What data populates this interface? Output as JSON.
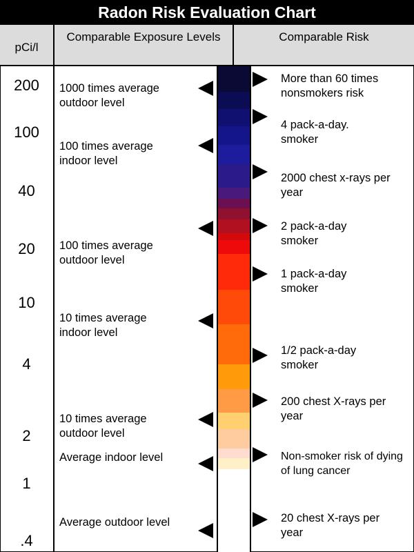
{
  "title": "Radon Risk Evaluation Chart",
  "headers": {
    "pci": "pCi/l",
    "exposure": "Comparable Exposure Levels",
    "risk": "Comparable Risk"
  },
  "scale_ticks": [
    "200",
    "100",
    "40",
    "20",
    "10",
    "4",
    "2",
    "1",
    ".4"
  ],
  "exposure_levels": [
    "1000 times average outdoor level",
    "100 times average indoor level",
    "100 times average outdoor level",
    "10 times average indoor level",
    "10 times average outdoor level",
    "Average indoor level",
    "Average outdoor level"
  ],
  "comparable_risks": [
    "More than 60 times nonsmokers risk",
    "4 pack-a-day. smoker",
    "2000 chest x-rays per year",
    "2 pack-a-day smoker",
    "1 pack-a-day smoker",
    "1/2 pack-a-day smoker",
    "200 chest X-rays per year",
    "Non-smoker risk of dying of lung cancer",
    "20 chest X-rays per year"
  ],
  "color_bar": [
    "#0a0a35",
    "#0c0c55",
    "#101070",
    "#15158a",
    "#1c1c9c",
    "#2a1a8a",
    "#4a1a7a",
    "#6a1050",
    "#901030",
    "#b01020",
    "#d40a0a",
    "#ee0a0a",
    "#ff2a0a",
    "#ff4a0a",
    "#ff6a0a",
    "#ff9a0a",
    "#ff9a45",
    "#ffcf70",
    "#ffcca0",
    "#ffdcd0",
    "#fff0c8",
    "#ffffff"
  ]
}
